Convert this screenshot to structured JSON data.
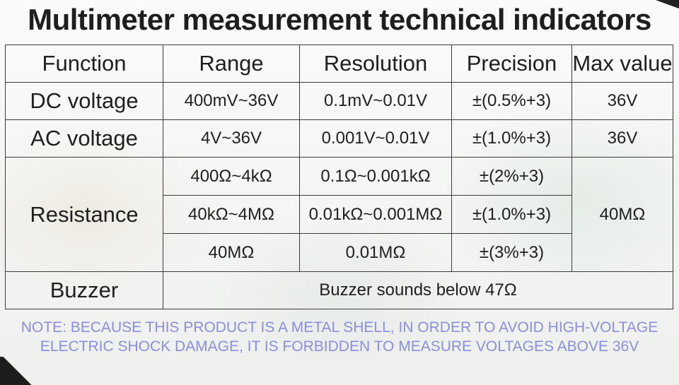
{
  "title": "Multimeter measurement technical indicators",
  "headers": [
    "Function",
    "Range",
    "Resolution",
    "Precision",
    "Max value"
  ],
  "rows": {
    "dc": {
      "function": "DC voltage",
      "range": "400mV~36V",
      "resolution": "0.1mV~0.01V",
      "precision": "±(0.5%+3)",
      "max": "36V"
    },
    "ac": {
      "function": "AC voltage",
      "range": "4V~36V",
      "resolution": "0.001V~0.01V",
      "precision": "±(1.0%+3)",
      "max": "36V"
    },
    "resistance": {
      "function": "Resistance",
      "max": "40MΩ",
      "sub": [
        {
          "range": "400Ω~4kΩ",
          "resolution": "0.1Ω~0.001kΩ",
          "precision": "±(2%+3)"
        },
        {
          "range": "40kΩ~4MΩ",
          "resolution": "0.01kΩ~0.001MΩ",
          "precision": "±(1.0%+3)"
        },
        {
          "range": "40MΩ",
          "resolution": "0.01MΩ",
          "precision": "±(3%+3)"
        }
      ]
    },
    "buzzer": {
      "function": "Buzzer",
      "description": "Buzzer sounds below 47Ω"
    }
  },
  "note": {
    "line1": "NOTE: BECAUSE THIS PRODUCT IS A METAL SHELL, IN ORDER TO AVOID HIGH-VOLTAGE",
    "line2": "ELECTRIC SHOCK DAMAGE, IT IS FORBIDDEN TO MEASURE VOLTAGES ABOVE 36V"
  },
  "colors": {
    "text": "#1f1f1f",
    "note": "#8a8ee0",
    "border": "#3b3b3b"
  }
}
